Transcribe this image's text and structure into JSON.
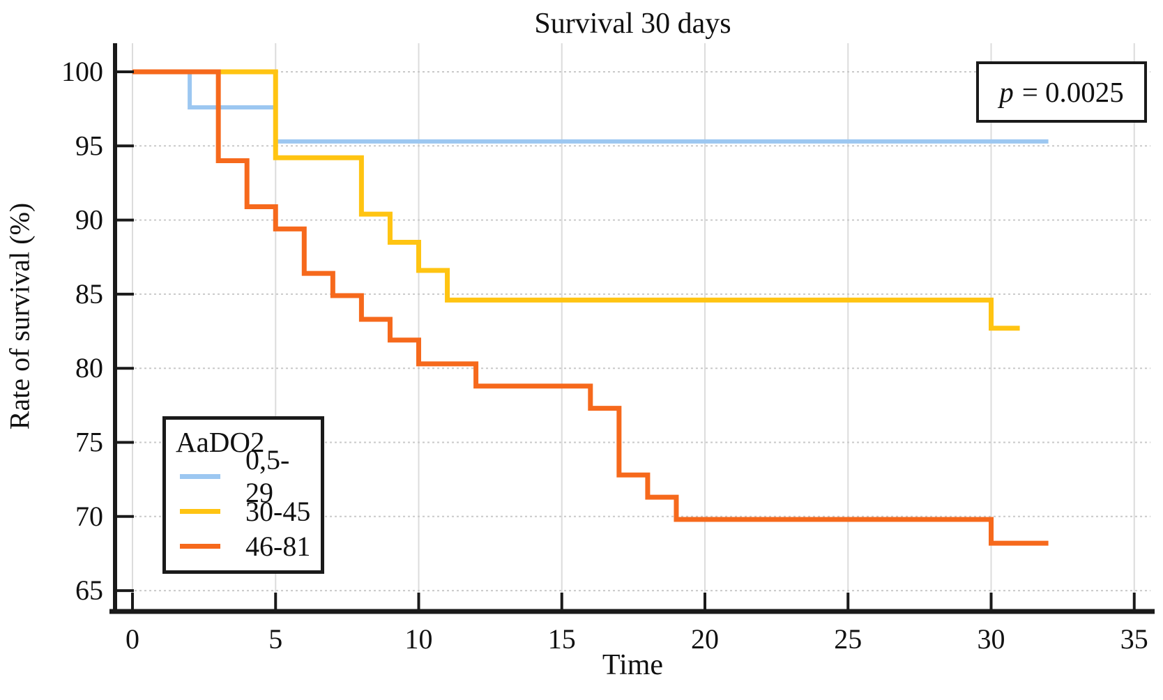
{
  "p_value": {
    "symbol": "p",
    "text": "= 0.0025"
  },
  "chart_data": {
    "type": "line",
    "subtype": "kaplan-meier-step",
    "title": "Survival 30 days",
    "xlabel": "Time",
    "ylabel": "Rate of survival (%)",
    "xlim": [
      0,
      35
    ],
    "ylim": [
      65,
      100
    ],
    "xticks": [
      0,
      5,
      10,
      15,
      20,
      25,
      30,
      35
    ],
    "yticks": [
      65,
      70,
      75,
      80,
      85,
      90,
      95,
      100
    ],
    "grid": true,
    "legend_title": "AaDO2",
    "legend_position": "lower-left",
    "annotation": "p = 0.0025",
    "series": [
      {
        "name": "0,5-29",
        "color": "#9CC7F1",
        "stroke_width": 6,
        "points": [
          [
            0,
            100
          ],
          [
            2,
            97.6
          ],
          [
            5,
            95.3
          ]
        ],
        "end": 32
      },
      {
        "name": "30-45",
        "color": "#FFC412",
        "stroke_width": 7,
        "points": [
          [
            0,
            100
          ],
          [
            5,
            94.2
          ],
          [
            8,
            90.4
          ],
          [
            9,
            88.5
          ],
          [
            10,
            86.6
          ],
          [
            11,
            84.6
          ],
          [
            30,
            82.7
          ]
        ],
        "end": 31
      },
      {
        "name": "46-81",
        "color": "#F6691C",
        "stroke_width": 7,
        "points": [
          [
            0,
            100
          ],
          [
            3,
            94.0
          ],
          [
            4,
            90.9
          ],
          [
            5,
            89.4
          ],
          [
            6,
            86.4
          ],
          [
            7,
            84.9
          ],
          [
            8,
            83.3
          ],
          [
            9,
            81.9
          ],
          [
            10,
            80.3
          ],
          [
            12,
            78.8
          ],
          [
            16,
            77.3
          ],
          [
            17,
            72.8
          ],
          [
            18,
            71.3
          ],
          [
            19,
            69.8
          ],
          [
            30,
            68.2
          ]
        ],
        "end": 32
      }
    ]
  }
}
